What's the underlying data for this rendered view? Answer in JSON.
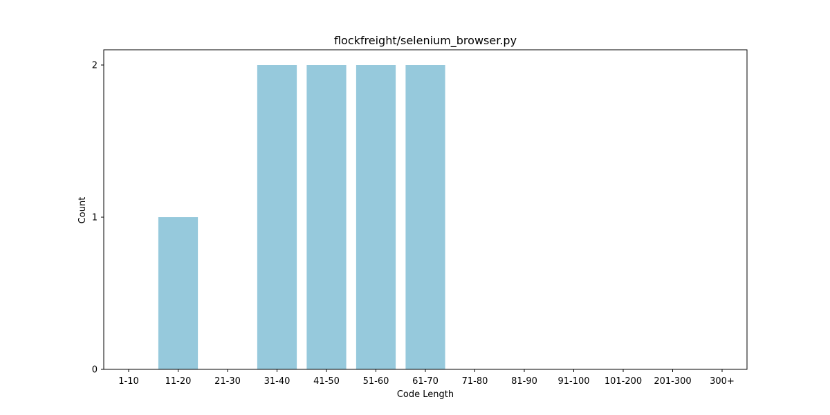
{
  "chart_data": {
    "type": "bar",
    "title": "flockfreight/selenium_browser.py",
    "xlabel": "Code Length",
    "ylabel": "Count",
    "categories": [
      "1-10",
      "11-20",
      "21-30",
      "31-40",
      "41-50",
      "51-60",
      "61-70",
      "71-80",
      "81-90",
      "91-100",
      "101-200",
      "201-300",
      "300+"
    ],
    "values": [
      0,
      1,
      0,
      2,
      2,
      2,
      2,
      0,
      0,
      0,
      0,
      0,
      0
    ],
    "yticks": [
      0,
      1,
      2
    ],
    "ylim": [
      0,
      2.1
    ],
    "grid": false,
    "bar_color": "#96c9dc"
  }
}
